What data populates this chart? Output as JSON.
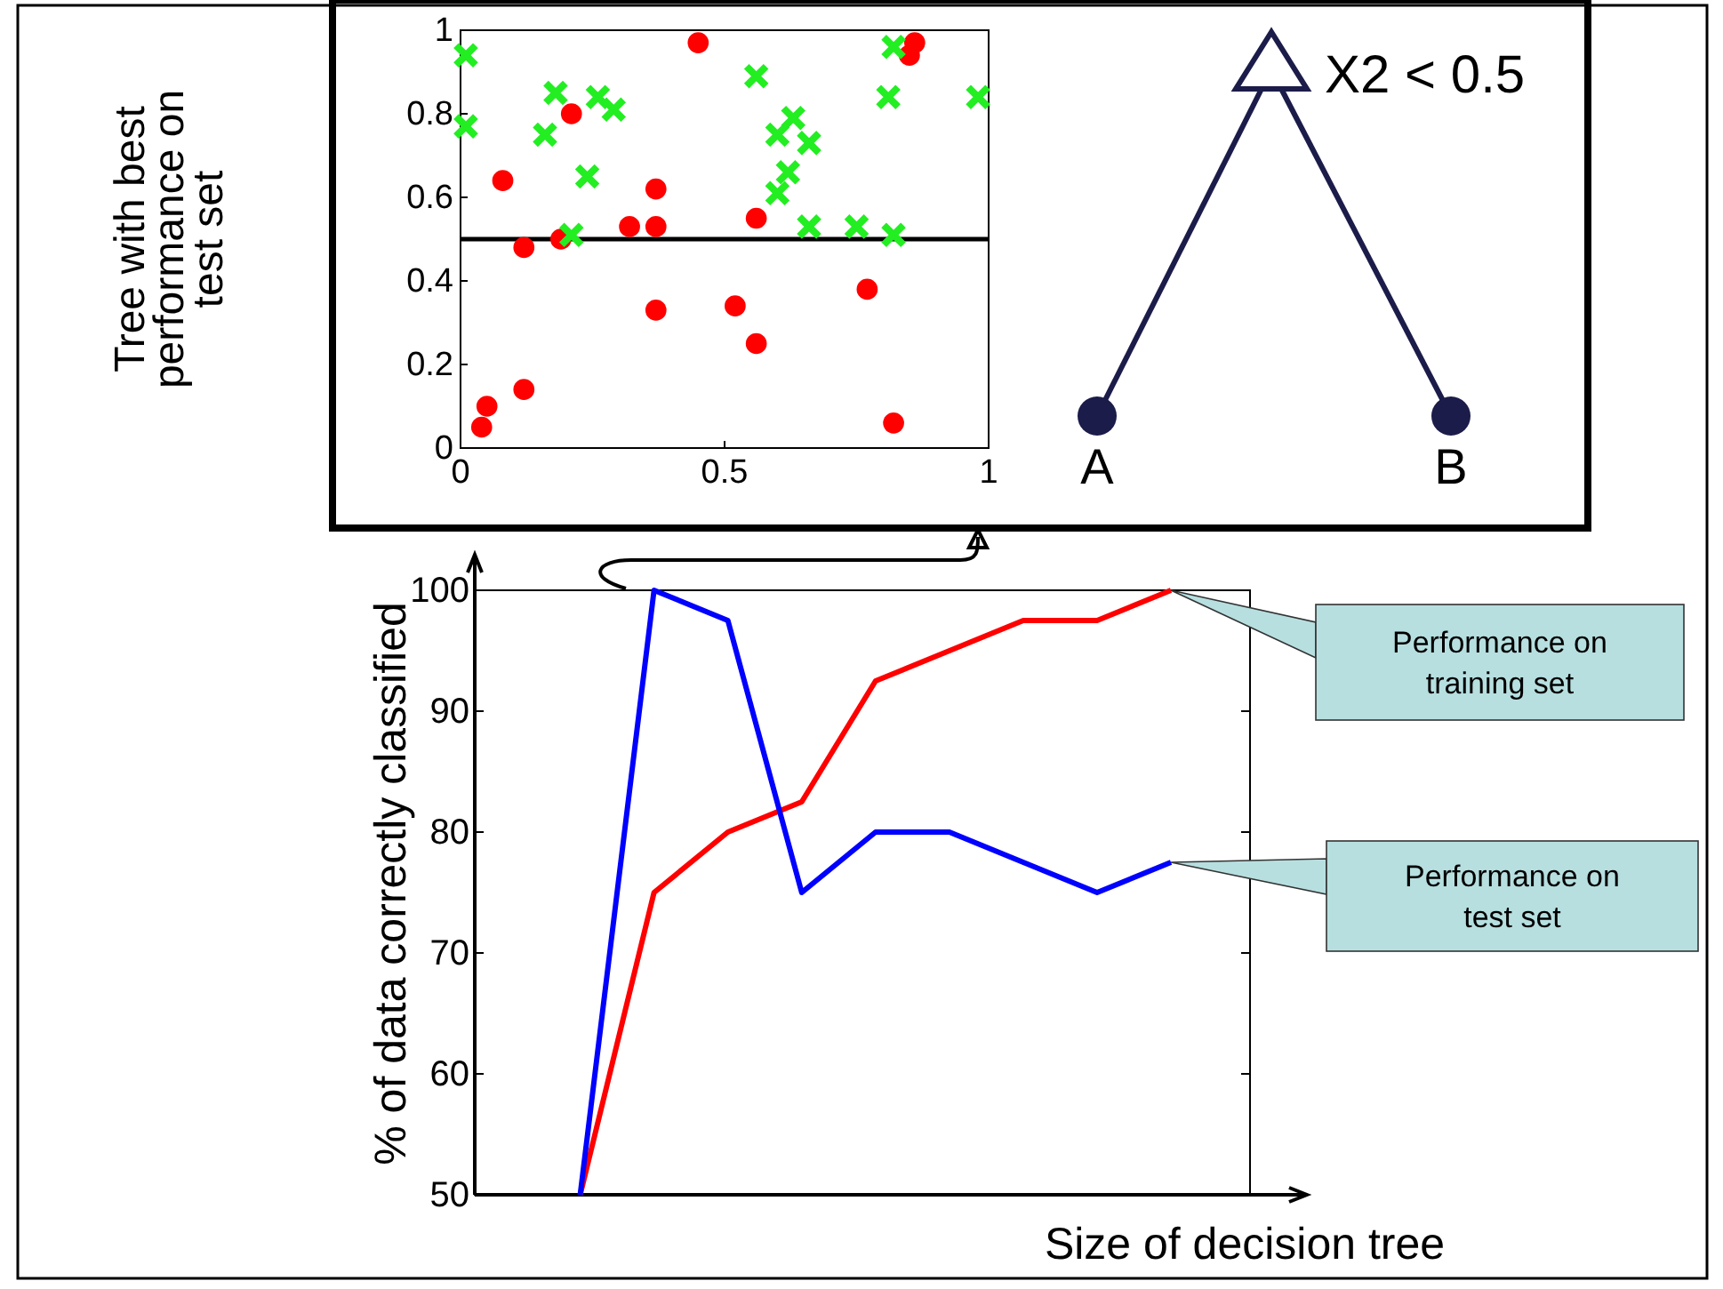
{
  "chart_data": [
    {
      "type": "scatter",
      "ylabel": "Tree with best performance on test set",
      "xlim": [
        0,
        1
      ],
      "ylim": [
        0,
        1
      ],
      "xticks": [
        0,
        0.5,
        1
      ],
      "yticks": [
        0,
        0.2,
        0.4,
        0.6,
        0.8,
        1
      ],
      "ref_lines": [
        {
          "axis": "y",
          "value": 0.5,
          "color": "#000000"
        }
      ],
      "series": [
        {
          "color": "#ff0000",
          "marker": "circle",
          "x": [
            0.45,
            0.86,
            0.85,
            0.21,
            0.08,
            0.37,
            0.32,
            0.37,
            0.56,
            0.19,
            0.12,
            0.77,
            0.37,
            0.52,
            0.56,
            0.12,
            0.05,
            0.04,
            0.82
          ],
          "values": [
            0.97,
            0.97,
            0.94,
            0.8,
            0.64,
            0.62,
            0.53,
            0.53,
            0.55,
            0.5,
            0.48,
            0.38,
            0.33,
            0.34,
            0.25,
            0.14,
            0.1,
            0.05,
            0.06
          ]
        },
        {
          "color": "#22ee22",
          "marker": "cross",
          "x": [
            0.01,
            0.01,
            0.18,
            0.16,
            0.26,
            0.29,
            0.24,
            0.21,
            0.56,
            0.82,
            0.81,
            0.98,
            0.63,
            0.6,
            0.66,
            0.62,
            0.6,
            0.66,
            0.75,
            0.82
          ],
          "values": [
            0.94,
            0.77,
            0.85,
            0.75,
            0.84,
            0.81,
            0.65,
            0.51,
            0.89,
            0.96,
            0.84,
            0.84,
            0.79,
            0.75,
            0.73,
            0.66,
            0.61,
            0.53,
            0.53,
            0.51
          ]
        }
      ]
    },
    {
      "type": "other",
      "annotations": [
        "X2 < 0.5",
        "A",
        "B"
      ]
    },
    {
      "type": "line",
      "xlabel": "Size of decision tree",
      "ylabel": "% of data correctly classified",
      "categories": [
        null,
        null,
        null,
        null,
        null,
        null,
        null,
        null,
        null
      ],
      "ylim": [
        50,
        100
      ],
      "yticks": [
        50,
        60,
        70,
        80,
        90,
        100
      ],
      "tick_labels": "y",
      "line_style": "solid",
      "marker": "none",
      "annotations": [
        "Performance on training set",
        "Performance on test set"
      ],
      "series": [
        {
          "color": "#ff0000",
          "values": [
            50,
            75,
            80,
            82.5,
            92.5,
            95,
            97.5,
            97.5,
            100
          ]
        },
        {
          "color": "#0000ff",
          "values": [
            50,
            100,
            97.5,
            75,
            80,
            80,
            77.5,
            75,
            77.5
          ]
        }
      ]
    }
  ]
}
